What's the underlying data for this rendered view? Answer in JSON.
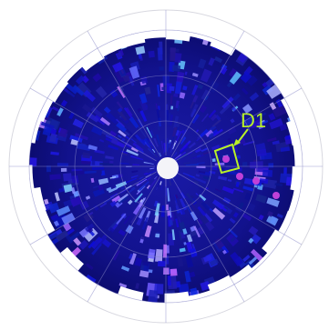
{
  "target": {
    "label": "D1"
  }
}
